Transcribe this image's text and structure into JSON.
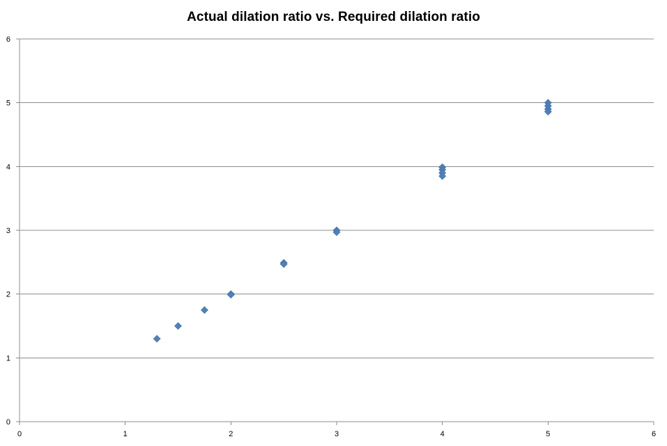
{
  "chart_data": {
    "type": "scatter",
    "title": "Actual dilation ratio vs. Required dilation ratio",
    "xlabel": "",
    "ylabel": "",
    "xlim": [
      0,
      6
    ],
    "ylim": [
      0,
      6
    ],
    "x_ticks": [
      "0",
      "1",
      "2",
      "3",
      "4",
      "5",
      "6"
    ],
    "y_ticks": [
      "0",
      "1",
      "2",
      "3",
      "4",
      "5",
      "6"
    ],
    "grid": "horizontal",
    "legend": "none",
    "marker": "diamond",
    "color": "#4F81BD",
    "series": [
      {
        "points": [
          {
            "x": 1.3,
            "y": 1.3
          },
          {
            "x": 1.5,
            "y": 1.5
          },
          {
            "x": 1.75,
            "y": 1.75
          },
          {
            "x": 2.0,
            "y": 2.0
          },
          {
            "x": 2.0,
            "y": 1.99
          },
          {
            "x": 2.5,
            "y": 2.49
          },
          {
            "x": 2.5,
            "y": 2.47
          },
          {
            "x": 3.0,
            "y": 3.0
          },
          {
            "x": 3.0,
            "y": 2.97
          },
          {
            "x": 4.0,
            "y": 3.99
          },
          {
            "x": 4.0,
            "y": 3.95
          },
          {
            "x": 4.0,
            "y": 3.9
          },
          {
            "x": 4.0,
            "y": 3.85
          },
          {
            "x": 5.0,
            "y": 5.0
          },
          {
            "x": 5.0,
            "y": 4.95
          },
          {
            "x": 5.0,
            "y": 4.9
          },
          {
            "x": 5.0,
            "y": 4.86
          }
        ]
      }
    ]
  }
}
